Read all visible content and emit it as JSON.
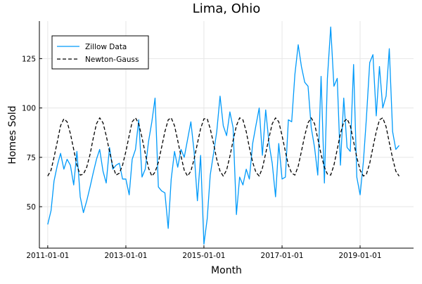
{
  "chart_data": {
    "type": "line",
    "title": "Lima, Ohio",
    "xlabel": "Month",
    "ylabel": "Homes Sold",
    "xlim": [
      "2010-10-15",
      "2020-05-15"
    ],
    "ylim": [
      29,
      144
    ],
    "xticks": [
      {
        "x": "2011-01-01",
        "label": "2011-01-01"
      },
      {
        "x": "2013-01-01",
        "label": "2013-01-01"
      },
      {
        "x": "2015-01-01",
        "label": "2015-01-01"
      },
      {
        "x": "2017-01-01",
        "label": "2017-01-01"
      },
      {
        "x": "2019-01-01",
        "label": "2019-01-01"
      }
    ],
    "yticks": [
      50,
      75,
      100,
      125
    ],
    "grid": true,
    "legend_position": "top-left",
    "series": [
      {
        "name": "Zillow Data",
        "color": "#009AFA",
        "dash": "solid",
        "points": [
          [
            "2011-01-01",
            41
          ],
          [
            "2011-02-01",
            48
          ],
          [
            "2011-03-01",
            63
          ],
          [
            "2011-04-01",
            71
          ],
          [
            "2011-05-01",
            77
          ],
          [
            "2011-06-01",
            69
          ],
          [
            "2011-07-01",
            74
          ],
          [
            "2011-08-01",
            71
          ],
          [
            "2011-09-01",
            61
          ],
          [
            "2011-10-01",
            78
          ],
          [
            "2011-11-01",
            55
          ],
          [
            "2011-12-01",
            47
          ],
          [
            "2012-01-01",
            53
          ],
          [
            "2012-02-01",
            60
          ],
          [
            "2012-03-01",
            67
          ],
          [
            "2012-04-01",
            74
          ],
          [
            "2012-05-01",
            79
          ],
          [
            "2012-06-01",
            68
          ],
          [
            "2012-07-01",
            62
          ],
          [
            "2012-08-01",
            80
          ],
          [
            "2012-09-01",
            69
          ],
          [
            "2012-10-01",
            71
          ],
          [
            "2012-11-01",
            72
          ],
          [
            "2012-12-01",
            64
          ],
          [
            "2013-01-01",
            64
          ],
          [
            "2013-02-01",
            56
          ],
          [
            "2013-03-01",
            74
          ],
          [
            "2013-04-01",
            79
          ],
          [
            "2013-05-01",
            94
          ],
          [
            "2013-06-01",
            65
          ],
          [
            "2013-07-01",
            69
          ],
          [
            "2013-08-01",
            83
          ],
          [
            "2013-09-01",
            93
          ],
          [
            "2013-10-01",
            105
          ],
          [
            "2013-11-01",
            60
          ],
          [
            "2013-12-01",
            58
          ],
          [
            "2014-01-01",
            57
          ],
          [
            "2014-02-01",
            39
          ],
          [
            "2014-03-01",
            64
          ],
          [
            "2014-04-01",
            78
          ],
          [
            "2014-05-01",
            70
          ],
          [
            "2014-06-01",
            79
          ],
          [
            "2014-07-01",
            75
          ],
          [
            "2014-08-01",
            84
          ],
          [
            "2014-09-01",
            93
          ],
          [
            "2014-10-01",
            78
          ],
          [
            "2014-11-01",
            53
          ],
          [
            "2014-12-01",
            76
          ],
          [
            "2015-01-01",
            31
          ],
          [
            "2015-02-01",
            44
          ],
          [
            "2015-03-01",
            66
          ],
          [
            "2015-04-01",
            77
          ],
          [
            "2015-05-01",
            88
          ],
          [
            "2015-06-01",
            106
          ],
          [
            "2015-07-01",
            91
          ],
          [
            "2015-08-01",
            86
          ],
          [
            "2015-09-01",
            98
          ],
          [
            "2015-10-01",
            90
          ],
          [
            "2015-11-01",
            46
          ],
          [
            "2015-12-01",
            65
          ],
          [
            "2016-01-01",
            61
          ],
          [
            "2016-02-01",
            69
          ],
          [
            "2016-03-01",
            64
          ],
          [
            "2016-04-01",
            82
          ],
          [
            "2016-05-01",
            91
          ],
          [
            "2016-06-01",
            100
          ],
          [
            "2016-07-01",
            76
          ],
          [
            "2016-08-01",
            99
          ],
          [
            "2016-09-01",
            82
          ],
          [
            "2016-10-01",
            72
          ],
          [
            "2016-11-01",
            55
          ],
          [
            "2016-12-01",
            82
          ],
          [
            "2017-01-01",
            64
          ],
          [
            "2017-02-01",
            65
          ],
          [
            "2017-03-01",
            94
          ],
          [
            "2017-04-01",
            93
          ],
          [
            "2017-05-01",
            117
          ],
          [
            "2017-06-01",
            132
          ],
          [
            "2017-07-01",
            121
          ],
          [
            "2017-08-01",
            113
          ],
          [
            "2017-09-01",
            111
          ],
          [
            "2017-10-01",
            90
          ],
          [
            "2017-11-01",
            80
          ],
          [
            "2017-12-01",
            66
          ],
          [
            "2018-01-01",
            116
          ],
          [
            "2018-02-01",
            62
          ],
          [
            "2018-03-01",
            115
          ],
          [
            "2018-04-01",
            141
          ],
          [
            "2018-05-01",
            111
          ],
          [
            "2018-06-01",
            115
          ],
          [
            "2018-07-01",
            71
          ],
          [
            "2018-08-01",
            105
          ],
          [
            "2018-09-01",
            80
          ],
          [
            "2018-10-01",
            78
          ],
          [
            "2018-11-01",
            122
          ],
          [
            "2018-12-01",
            65
          ],
          [
            "2019-01-01",
            56
          ],
          [
            "2019-02-01",
            73
          ],
          [
            "2019-03-01",
            95
          ],
          [
            "2019-04-01",
            123
          ],
          [
            "2019-05-01",
            127
          ],
          [
            "2019-06-01",
            96
          ],
          [
            "2019-07-01",
            121
          ],
          [
            "2019-08-01",
            100
          ],
          [
            "2019-09-01",
            106
          ],
          [
            "2019-10-01",
            130
          ],
          [
            "2019-11-01",
            88
          ],
          [
            "2019-12-01",
            79
          ],
          [
            "2020-01-01",
            81
          ]
        ]
      },
      {
        "name": "Newton-Gauss",
        "color": "#000000",
        "dash": "dashed",
        "points": [
          [
            "2011-01-01",
            65.5
          ],
          [
            "2011-02-01",
            68.5
          ],
          [
            "2011-03-01",
            75
          ],
          [
            "2011-04-01",
            83
          ],
          [
            "2011-05-01",
            91
          ],
          [
            "2011-06-01",
            94.5
          ],
          [
            "2011-07-01",
            93
          ],
          [
            "2011-08-01",
            87
          ],
          [
            "2011-09-01",
            79
          ],
          [
            "2011-10-01",
            71
          ],
          [
            "2011-11-01",
            66
          ],
          [
            "2011-12-01",
            66.5
          ],
          [
            "2012-01-01",
            70
          ],
          [
            "2012-02-01",
            76.5
          ],
          [
            "2012-03-01",
            84.5
          ],
          [
            "2012-04-01",
            92
          ],
          [
            "2012-05-01",
            95
          ],
          [
            "2012-06-01",
            92.5
          ],
          [
            "2012-07-01",
            86
          ],
          [
            "2012-08-01",
            78
          ],
          [
            "2012-09-01",
            70.5
          ],
          [
            "2012-10-01",
            66
          ],
          [
            "2012-11-01",
            67
          ],
          [
            "2012-12-01",
            71
          ],
          [
            "2013-01-01",
            78
          ],
          [
            "2013-02-01",
            86
          ],
          [
            "2013-03-01",
            93
          ],
          [
            "2013-04-01",
            95
          ],
          [
            "2013-05-01",
            92
          ],
          [
            "2013-06-01",
            85
          ],
          [
            "2013-07-01",
            77
          ],
          [
            "2013-08-01",
            69.5
          ],
          [
            "2013-09-01",
            65.5
          ],
          [
            "2013-10-01",
            67.5
          ],
          [
            "2013-11-01",
            72.5
          ],
          [
            "2013-12-01",
            80
          ],
          [
            "2014-01-01",
            88
          ],
          [
            "2014-02-01",
            94
          ],
          [
            "2014-03-01",
            95
          ],
          [
            "2014-04-01",
            91
          ],
          [
            "2014-05-01",
            83.5
          ],
          [
            "2014-06-01",
            75.5
          ],
          [
            "2014-07-01",
            68.5
          ],
          [
            "2014-08-01",
            65.5
          ],
          [
            "2014-09-01",
            68
          ],
          [
            "2014-10-01",
            74
          ],
          [
            "2014-11-01",
            82
          ],
          [
            "2014-12-01",
            89.5
          ],
          [
            "2015-01-01",
            94.5
          ],
          [
            "2015-02-01",
            94.5
          ],
          [
            "2015-03-01",
            89.5
          ],
          [
            "2015-04-01",
            82
          ],
          [
            "2015-05-01",
            74
          ],
          [
            "2015-06-01",
            68
          ],
          [
            "2015-07-01",
            65.5
          ],
          [
            "2015-08-01",
            68.5
          ],
          [
            "2015-09-01",
            75.5
          ],
          [
            "2015-10-01",
            83.5
          ],
          [
            "2015-11-01",
            91
          ],
          [
            "2015-12-01",
            95
          ],
          [
            "2016-01-01",
            94
          ],
          [
            "2016-02-01",
            88
          ],
          [
            "2016-03-01",
            80
          ],
          [
            "2016-04-01",
            72.5
          ],
          [
            "2016-05-01",
            67.5
          ],
          [
            "2016-06-01",
            65.5
          ],
          [
            "2016-07-01",
            69.5
          ],
          [
            "2016-08-01",
            77
          ],
          [
            "2016-09-01",
            85
          ],
          [
            "2016-10-01",
            92
          ],
          [
            "2016-11-01",
            95
          ],
          [
            "2016-12-01",
            93
          ],
          [
            "2017-01-01",
            86
          ],
          [
            "2017-02-01",
            78
          ],
          [
            "2017-03-01",
            71
          ],
          [
            "2017-04-01",
            67
          ],
          [
            "2017-05-01",
            66
          ],
          [
            "2017-06-01",
            70.5
          ],
          [
            "2017-07-01",
            78
          ],
          [
            "2017-08-01",
            86
          ],
          [
            "2017-09-01",
            92.5
          ],
          [
            "2017-10-01",
            95
          ],
          [
            "2017-11-01",
            92
          ],
          [
            "2017-12-01",
            84.5
          ],
          [
            "2018-01-01",
            76.5
          ],
          [
            "2018-02-01",
            70
          ],
          [
            "2018-03-01",
            66.5
          ],
          [
            "2018-04-01",
            66
          ],
          [
            "2018-05-01",
            71
          ],
          [
            "2018-06-01",
            79
          ],
          [
            "2018-07-01",
            87
          ],
          [
            "2018-08-01",
            93
          ],
          [
            "2018-09-01",
            94.5
          ],
          [
            "2018-10-01",
            91
          ],
          [
            "2018-11-01",
            83
          ],
          [
            "2018-12-01",
            75
          ],
          [
            "2019-01-01",
            68.5
          ],
          [
            "2019-02-01",
            65.5
          ],
          [
            "2019-03-01",
            66.5
          ],
          [
            "2019-04-01",
            72
          ],
          [
            "2019-05-01",
            80
          ],
          [
            "2019-06-01",
            88
          ],
          [
            "2019-07-01",
            94
          ],
          [
            "2019-08-01",
            95
          ],
          [
            "2019-09-01",
            90.5
          ],
          [
            "2019-10-01",
            82.5
          ],
          [
            "2019-11-01",
            74.5
          ],
          [
            "2019-12-01",
            68
          ],
          [
            "2020-01-01",
            65.5
          ]
        ]
      }
    ]
  }
}
